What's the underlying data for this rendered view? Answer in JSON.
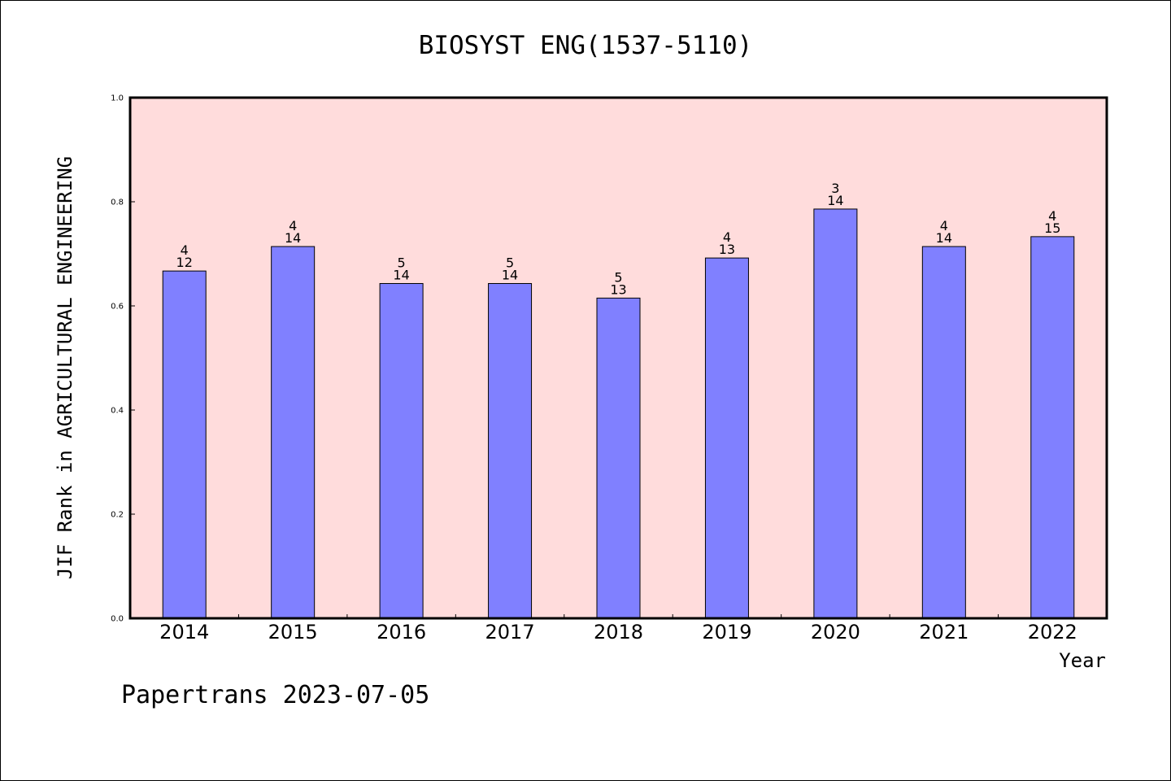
{
  "chart_data": {
    "type": "bar",
    "title": "BIOSYST ENG(1537-5110)",
    "xlabel": "Year",
    "ylabel": "JIF Rank in AGRICULTURAL ENGINEERING",
    "ylim": [
      0,
      1.0
    ],
    "yticks": [
      "0.0",
      "0.2",
      "0.4",
      "0.6",
      "0.8",
      "1.0"
    ],
    "categories": [
      "2014",
      "2015",
      "2016",
      "2017",
      "2018",
      "2019",
      "2020",
      "2021",
      "2022"
    ],
    "values": [
      0.667,
      0.714,
      0.643,
      0.643,
      0.615,
      0.692,
      0.786,
      0.714,
      0.733
    ],
    "rank": [
      "4",
      "4",
      "5",
      "5",
      "5",
      "4",
      "3",
      "4",
      "4"
    ],
    "total": [
      "12",
      "14",
      "14",
      "14",
      "13",
      "13",
      "14",
      "14",
      "15"
    ],
    "grid": false,
    "legend": "none",
    "colors": {
      "plot_background": "#ffdcdc",
      "bar_fill": "#8080ff",
      "bar_stroke": "#000000"
    }
  },
  "footer": "Papertrans 2023-07-05"
}
